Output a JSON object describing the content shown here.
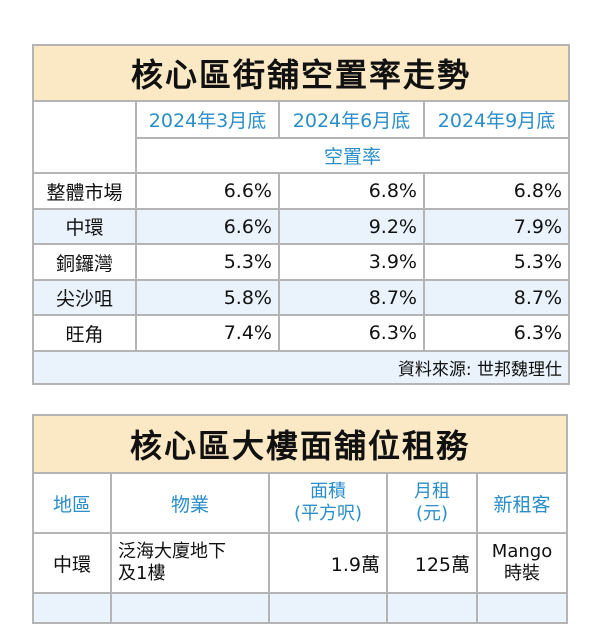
{
  "vacancy_table": {
    "title": "核心區街舖空置率走勢",
    "columns": [
      "2024年3月底",
      "2024年6月底",
      "2024年9月底"
    ],
    "subheader": "空置率",
    "rows": [
      {
        "district": "整體市場",
        "values": [
          "6.6%",
          "6.8%",
          "6.8%"
        ]
      },
      {
        "district": "中環",
        "values": [
          "6.6%",
          "9.2%",
          "7.9%"
        ]
      },
      {
        "district": "銅鑼灣",
        "values": [
          "5.3%",
          "3.9%",
          "5.3%"
        ]
      },
      {
        "district": "尖沙咀",
        "values": [
          "5.8%",
          "8.7%",
          "8.7%"
        ]
      },
      {
        "district": "旺角",
        "values": [
          "7.4%",
          "6.3%",
          "6.3%"
        ]
      }
    ],
    "source": "資料來源: 世邦魏理仕"
  },
  "lease_table": {
    "title": "核心區大樓面舖位租務",
    "columns": [
      "地區",
      "物業",
      "面積",
      "(平方呎)",
      "月租",
      "(元)",
      "新租客"
    ],
    "rows": [
      {
        "district": "中環",
        "property_line1": "泛海大廈地下",
        "property_line2": "及1樓",
        "area": "1.9萬",
        "rent": "125萬",
        "tenant_line1": "Mango",
        "tenant_line2": "時裝"
      }
    ]
  },
  "colors": {
    "title_bg": "#fbe9c6",
    "header_text": "#2b8ec8",
    "row_highlight": "#eaf2fb",
    "border": "#b4b4b4"
  }
}
